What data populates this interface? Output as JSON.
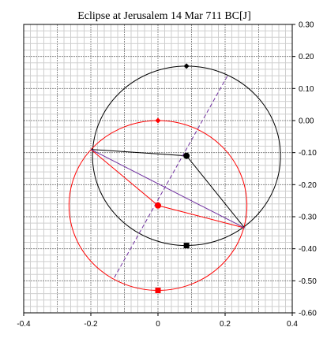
{
  "chart_data": {
    "type": "scatter",
    "title": "Eclipse at Jerusalem 14 Mar 711 BC[J]",
    "xlabel": "",
    "ylabel": "",
    "xlim": [
      -0.4,
      0.4
    ],
    "ylim": [
      -0.6,
      0.3
    ],
    "x_ticks": [
      "-0.4",
      "-0.2",
      "0",
      "0.2",
      "0.4"
    ],
    "x_tick_values": [
      -0.4,
      -0.2,
      0,
      0.2,
      0.4
    ],
    "y_ticks": [
      "0.30",
      "0.20",
      "0.10",
      "0.00",
      "-0.10",
      "-0.20",
      "-0.30",
      "-0.40",
      "-0.50",
      "-0.60"
    ],
    "y_tick_values": [
      0.3,
      0.2,
      0.1,
      0.0,
      -0.1,
      -0.2,
      -0.3,
      -0.4,
      -0.5,
      -0.6
    ],
    "y_axis_side": "right",
    "grid": true,
    "legend": "none",
    "circles": [
      {
        "name": "",
        "center": [
          0.085,
          -0.11
        ],
        "radius": 0.28,
        "color": "#000000"
      },
      {
        "name": "",
        "center": [
          0.0,
          -0.265
        ],
        "radius": 0.265,
        "color": "#ff0000"
      }
    ],
    "points": [
      {
        "x": 0.085,
        "y": 0.17,
        "marker": "diamond",
        "color": "#000000"
      },
      {
        "x": 0.085,
        "y": -0.11,
        "marker": "circle",
        "color": "#000000"
      },
      {
        "x": 0.085,
        "y": -0.39,
        "marker": "square",
        "color": "#000000"
      },
      {
        "x": 0.0,
        "y": 0.0,
        "marker": "diamond",
        "color": "#ff0000"
      },
      {
        "x": 0.0,
        "y": -0.265,
        "marker": "circle",
        "color": "#ff0000"
      },
      {
        "x": 0.0,
        "y": -0.53,
        "marker": "square",
        "color": "#ff0000"
      }
    ],
    "lines": [
      {
        "points": [
          [
            -0.2,
            -0.09
          ],
          [
            0.085,
            -0.11
          ],
          [
            0.258,
            -0.335
          ]
        ],
        "color": "#000000",
        "dash": false
      },
      {
        "points": [
          [
            -0.2,
            -0.09
          ],
          [
            0.0,
            -0.265
          ],
          [
            0.258,
            -0.335
          ]
        ],
        "color": "#ff0000",
        "dash": false
      },
      {
        "points": [
          [
            -0.2,
            -0.09
          ],
          [
            0.258,
            -0.335
          ]
        ],
        "color": "#7030a0",
        "dash": false
      },
      {
        "points": [
          [
            -0.13,
            -0.49
          ],
          [
            0.21,
            0.145
          ]
        ],
        "color": "#7030a0",
        "dash": true
      }
    ]
  }
}
